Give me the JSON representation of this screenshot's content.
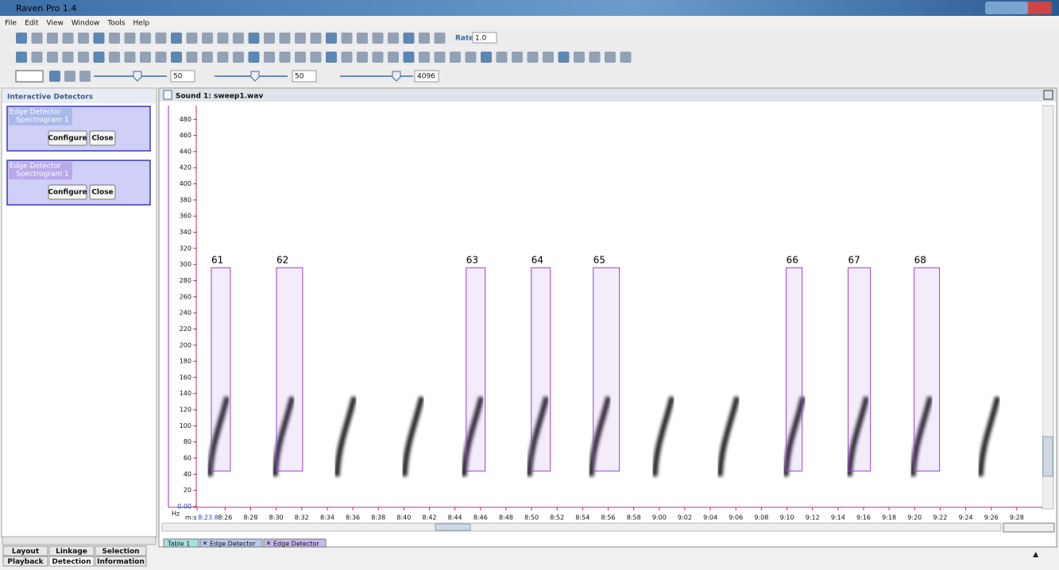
{
  "window": {
    "title": "Raven Pro 1.4"
  },
  "menu": [
    "File",
    "Edit",
    "View",
    "Window",
    "Tools",
    "Help"
  ],
  "toolbar": {
    "rate_label": "Rate:",
    "rate": "1.0",
    "brightness": "50",
    "contrast": "50",
    "size": "4096"
  },
  "left_panel": {
    "title": "Interactive Detectors",
    "detectors": [
      {
        "name": "Edge Detector",
        "source": "Spectrogram 1",
        "buttons": [
          "Configure",
          "Close"
        ]
      },
      {
        "name": "Edge Detector",
        "source": "Spectrogram 1",
        "buttons": [
          "Configure",
          "Close"
        ]
      }
    ],
    "tabs": [
      "Layout",
      "Linkage",
      "Selection",
      "Playback",
      "Detection",
      "Information"
    ]
  },
  "sound_window": {
    "title": "Sound 1: sweep1.wav",
    "tabs": [
      "Table 1",
      "Edge Detector",
      "Edge Detector"
    ]
  },
  "chart_data": {
    "type": "spectrogram",
    "y_label": "Hz",
    "x_label": "m:s",
    "xlim": [
      503.8,
      570
    ],
    "ylim": [
      0,
      497
    ],
    "xticks": [
      {
        "value": 503.8,
        "label": "8:23.8"
      },
      {
        "value": 506,
        "label": "8:26"
      },
      {
        "value": 508,
        "label": "8:28"
      },
      {
        "value": 510,
        "label": "8:30"
      },
      {
        "value": 512,
        "label": "8:32"
      },
      {
        "value": 514,
        "label": "8:34"
      },
      {
        "value": 516,
        "label": "8:36"
      },
      {
        "value": 518,
        "label": "8:38"
      },
      {
        "value": 520,
        "label": "8:40"
      },
      {
        "value": 522,
        "label": "8:42"
      },
      {
        "value": 524,
        "label": "8:44"
      },
      {
        "value": 526,
        "label": "8:46"
      },
      {
        "value": 528,
        "label": "8:48"
      },
      {
        "value": 530,
        "label": "8:50"
      },
      {
        "value": 532,
        "label": "8:52"
      },
      {
        "value": 534,
        "label": "8:54"
      },
      {
        "value": 536,
        "label": "8:56"
      },
      {
        "value": 538,
        "label": "8:58"
      },
      {
        "value": 540,
        "label": "9:00"
      },
      {
        "value": 542,
        "label": "9:02"
      },
      {
        "value": 544,
        "label": "9:04"
      },
      {
        "value": 546,
        "label": "9:06"
      },
      {
        "value": 548,
        "label": "9:08"
      },
      {
        "value": 550,
        "label": "9:10"
      },
      {
        "value": 552,
        "label": "9:12"
      },
      {
        "value": 554,
        "label": "9:14"
      },
      {
        "value": 556,
        "label": "9:16"
      },
      {
        "value": 558,
        "label": "9:18"
      },
      {
        "value": 560,
        "label": "9:20"
      },
      {
        "value": 562,
        "label": "9:22"
      },
      {
        "value": 564,
        "label": "9:24"
      },
      {
        "value": 566,
        "label": "9:26"
      },
      {
        "value": 568,
        "label": "9:28"
      }
    ],
    "yticks": [
      {
        "value": 0,
        "label": "0.00"
      },
      20,
      40,
      60,
      80,
      100,
      120,
      140,
      160,
      180,
      200,
      220,
      240,
      260,
      280,
      300,
      320,
      340,
      360,
      380,
      400,
      420,
      440,
      460,
      480
    ],
    "selections": [
      {
        "label": "61",
        "begin": 504.92,
        "end": 506.41,
        "low": 44,
        "high": 296
      },
      {
        "label": "62",
        "begin": 510.02,
        "end": 512.07,
        "low": 44,
        "high": 296
      },
      {
        "label": "63",
        "begin": 524.88,
        "end": 526.37,
        "low": 44,
        "high": 296
      },
      {
        "label": "64",
        "begin": 529.98,
        "end": 531.47,
        "low": 44,
        "high": 296
      },
      {
        "label": "65",
        "begin": 534.83,
        "end": 536.88,
        "low": 44,
        "high": 296
      },
      {
        "label": "66",
        "begin": 549.94,
        "end": 551.19,
        "low": 44,
        "high": 296
      },
      {
        "label": "67",
        "begin": 554.79,
        "end": 556.54,
        "low": 44,
        "high": 296
      },
      {
        "label": "68",
        "begin": 559.96,
        "end": 561.95,
        "low": 44,
        "high": 296
      }
    ]
  }
}
